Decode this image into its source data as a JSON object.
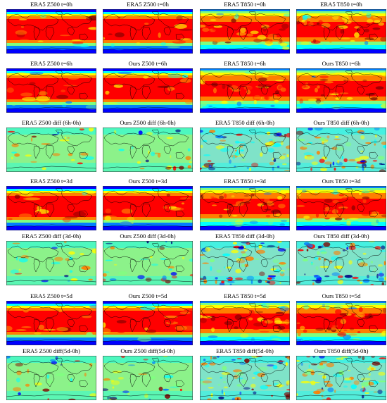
{
  "figure": {
    "rows": [
      {
        "kind": "state",
        "panels": [
          {
            "title": "ERA5 Z500 t=0h",
            "variable": "Z500"
          },
          {
            "title": "ERA5 Z500 t=0h",
            "variable": "Z500"
          },
          {
            "title": "ERA5 T850 t=0h",
            "variable": "T850"
          },
          {
            "title": "ERA5 T850 t=0h",
            "variable": "T850"
          }
        ]
      },
      {
        "kind": "state",
        "panels": [
          {
            "title": "ERA5 Z500 t=6h",
            "variable": "Z500"
          },
          {
            "title": "Ours Z500 t=6h",
            "variable": "Z500"
          },
          {
            "title": "ERA5 T850 t=6h",
            "variable": "T850"
          },
          {
            "title": "Ours T850 t=6h",
            "variable": "T850"
          }
        ]
      },
      {
        "kind": "diff",
        "panels": [
          {
            "title": "ERA5 Z500 diff (6h-0h)",
            "variable": "Z500"
          },
          {
            "title": "Ours Z500 diff (6h-0h)",
            "variable": "Z500"
          },
          {
            "title": "ERA5 T850 diff (6h-0h)",
            "variable": "T850"
          },
          {
            "title": "Ours T850 diff (6h-0h)",
            "variable": "T850"
          }
        ]
      },
      {
        "kind": "state",
        "panels": [
          {
            "title": "ERA5 Z500 t=3d",
            "variable": "Z500"
          },
          {
            "title": "Ours Z500 t=3d",
            "variable": "Z500"
          },
          {
            "title": "ERA5 T850 t=3d",
            "variable": "T850"
          },
          {
            "title": "Ours T850 t=3d",
            "variable": "T850"
          }
        ]
      },
      {
        "kind": "diff",
        "panels": [
          {
            "title": "ERA5 Z500 diff (3d-0h)",
            "variable": "Z500"
          },
          {
            "title": "Ours Z500 diff (3d-0h)",
            "variable": "Z500"
          },
          {
            "title": "ERA5 T850 diff (3d-0h)",
            "variable": "T850"
          },
          {
            "title": "Ours T850 diff (3d-0h)",
            "variable": "T850"
          }
        ]
      },
      {
        "kind": "state",
        "panels": [
          {
            "title": "ERA5 Z500 t=5d",
            "variable": "Z500"
          },
          {
            "title": "Ours Z500 t=5d",
            "variable": "Z500"
          },
          {
            "title": "ERA5 T850 t=5d",
            "variable": "T850"
          },
          {
            "title": "Ours T850 t=5d",
            "variable": "T850"
          }
        ]
      },
      {
        "kind": "diff",
        "panels": [
          {
            "title": "ERA5 Z500 diff(5d-0h)",
            "variable": "Z500"
          },
          {
            "title": "Ours Z500 diff(5d-0h)",
            "variable": "Z500"
          },
          {
            "title": "ERA5 T850 diff(5d-0h)",
            "variable": "T850"
          },
          {
            "title": "Ours T850 diff(5d-0h)",
            "variable": "T850"
          }
        ]
      }
    ],
    "colormap": [
      "#00007f",
      "#0000ff",
      "#007fff",
      "#00ffff",
      "#7fff7f",
      "#ffff00",
      "#ff7f00",
      "#ff0000",
      "#7f0000"
    ],
    "coastline_color": "#000000"
  }
}
